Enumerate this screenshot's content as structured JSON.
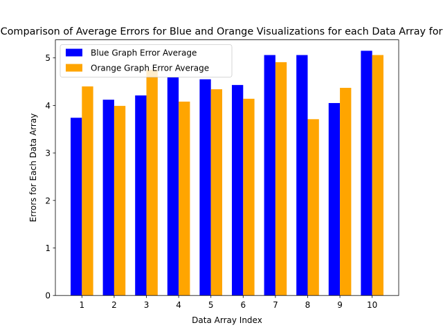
{
  "chart_data": {
    "type": "bar",
    "title": "Comparison of Average Errors for Blue and Orange Visualizations for each Data Array for",
    "xlabel": "Data Array Index",
    "ylabel": "Errors for Each Data Array",
    "categories": [
      "1",
      "2",
      "3",
      "4",
      "5",
      "6",
      "7",
      "8",
      "9",
      "10"
    ],
    "series": [
      {
        "name": "Blue Graph Error Average",
        "color": "#0000ff",
        "values": [
          3.74,
          4.12,
          4.21,
          4.59,
          4.55,
          4.43,
          5.06,
          5.06,
          4.05,
          5.15
        ]
      },
      {
        "name": "Orange Graph Error Average",
        "color": "#ffa500",
        "values": [
          4.4,
          3.99,
          4.75,
          4.08,
          4.34,
          4.14,
          4.91,
          3.71,
          4.37,
          5.06
        ]
      }
    ],
    "ylim": [
      0,
      5.38
    ],
    "yticks": [
      0,
      1,
      2,
      3,
      4,
      5
    ],
    "grid": false,
    "legend": "upper-left"
  }
}
